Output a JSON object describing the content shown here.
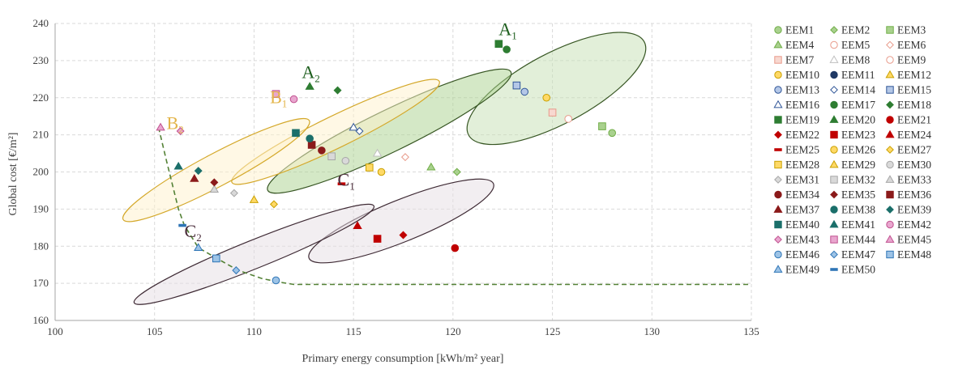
{
  "chart_data": {
    "type": "scatter",
    "title": "",
    "xlabel": "Primary energy consumption [kWh/m² year]",
    "ylabel": "Global cost [€/m²]",
    "xlim": [
      100,
      135
    ],
    "ylim": [
      160,
      240
    ],
    "xticks": [
      100,
      105,
      110,
      115,
      120,
      125,
      130,
      135
    ],
    "yticks": [
      160,
      170,
      180,
      190,
      200,
      210,
      220,
      230,
      240
    ],
    "grid": "dashed",
    "legend_position": "right",
    "series": [
      {
        "name": "EEM1",
        "marker": "circle",
        "color": "#70ad47",
        "fill": "#a9d18e",
        "x": 128.0,
        "y": 210.5
      },
      {
        "name": "EEM2",
        "marker": "diamond",
        "color": "#70ad47",
        "fill": "#a9d18e",
        "x": 120.2,
        "y": 200.0
      },
      {
        "name": "EEM3",
        "marker": "square",
        "color": "#70ad47",
        "fill": "#a9d18e",
        "x": 127.5,
        "y": 212.3
      },
      {
        "name": "EEM4",
        "marker": "triangle",
        "color": "#70ad47",
        "fill": "#a9d18e",
        "x": 118.9,
        "y": 201.3
      },
      {
        "name": "EEM5",
        "marker": "circle",
        "color": "#e89a8a",
        "fill": "#ffffff",
        "x": null,
        "y": null
      },
      {
        "name": "EEM6",
        "marker": "diamond",
        "color": "#e89a8a",
        "fill": "#ffffff",
        "x": 117.6,
        "y": 204.0
      },
      {
        "name": "EEM7",
        "marker": "square",
        "color": "#e89a8a",
        "fill": "#f8d8d0",
        "x": 125.0,
        "y": 216.0
      },
      {
        "name": "EEM8",
        "marker": "triangle",
        "color": "#bfbfbf",
        "fill": "#ffffff",
        "x": 116.2,
        "y": 205.0
      },
      {
        "name": "EEM9",
        "marker": "circle",
        "color": "#e89a8a",
        "fill": "#ffffff",
        "x": 125.8,
        "y": 214.3
      },
      {
        "name": "EEM10",
        "marker": "circle",
        "color": "#c9a000",
        "fill": "#ffd966",
        "x": 124.7,
        "y": 220.0
      },
      {
        "name": "EEM11",
        "marker": "circle",
        "color": "#1f3864",
        "fill": "#1f3864",
        "x": null,
        "y": null
      },
      {
        "name": "EEM12",
        "marker": "triangle",
        "color": "#c9a000",
        "fill": "#ffd966",
        "x": null,
        "y": null
      },
      {
        "name": "EEM13",
        "marker": "circle",
        "color": "#2f5597",
        "fill": "#b4c7e7",
        "x": 123.6,
        "y": 221.6
      },
      {
        "name": "EEM14",
        "marker": "diamond",
        "color": "#2f5597",
        "fill": "#ffffff",
        "x": 115.3,
        "y": 211.0
      },
      {
        "name": "EEM15",
        "marker": "square",
        "color": "#2f5597",
        "fill": "#b4c7e7",
        "x": 123.2,
        "y": 223.3
      },
      {
        "name": "EEM16",
        "marker": "triangle",
        "color": "#2f5597",
        "fill": "#ffffff",
        "x": 115.0,
        "y": 212.0
      },
      {
        "name": "EEM17",
        "marker": "circle",
        "color": "#2e7d32",
        "fill": "#2e7d32",
        "x": 122.7,
        "y": 233.0
      },
      {
        "name": "EEM18",
        "marker": "diamond",
        "color": "#2e7d32",
        "fill": "#2e7d32",
        "x": 114.2,
        "y": 222.0
      },
      {
        "name": "EEM19",
        "marker": "square",
        "color": "#2e7d32",
        "fill": "#2e7d32",
        "x": 122.3,
        "y": 234.5
      },
      {
        "name": "EEM20",
        "marker": "triangle",
        "color": "#2e7d32",
        "fill": "#2e7d32",
        "x": 112.8,
        "y": 223.0
      },
      {
        "name": "EEM21",
        "marker": "circle",
        "color": "#c00000",
        "fill": "#c00000",
        "x": 120.1,
        "y": 179.5
      },
      {
        "name": "EEM22",
        "marker": "diamond",
        "color": "#c00000",
        "fill": "#c00000",
        "x": 117.5,
        "y": 183.0
      },
      {
        "name": "EEM23",
        "marker": "square",
        "color": "#c00000",
        "fill": "#c00000",
        "x": 116.2,
        "y": 182.0
      },
      {
        "name": "EEM24",
        "marker": "triangle",
        "color": "#c00000",
        "fill": "#c00000",
        "x": 115.2,
        "y": 185.5
      },
      {
        "name": "EEM25",
        "marker": "dash",
        "color": "#c00000",
        "fill": "#c00000",
        "x": 114.4,
        "y": 196.8
      },
      {
        "name": "EEM26",
        "marker": "circle",
        "color": "#c9a000",
        "fill": "#ffd966",
        "x": 116.4,
        "y": 200.0
      },
      {
        "name": "EEM27",
        "marker": "diamond",
        "color": "#c9a000",
        "fill": "#ffd966",
        "x": 111.0,
        "y": 191.3
      },
      {
        "name": "EEM28",
        "marker": "square",
        "color": "#c9a000",
        "fill": "#ffd966",
        "x": 115.8,
        "y": 201.2
      },
      {
        "name": "EEM29",
        "marker": "triangle",
        "color": "#c9a000",
        "fill": "#ffd966",
        "x": 110.0,
        "y": 192.5
      },
      {
        "name": "EEM30",
        "marker": "circle",
        "color": "#a6a6a6",
        "fill": "#d9d9d9",
        "x": 114.6,
        "y": 203.0
      },
      {
        "name": "EEM31",
        "marker": "diamond",
        "color": "#a6a6a6",
        "fill": "#d9d9d9",
        "x": 109.0,
        "y": 194.3
      },
      {
        "name": "EEM32",
        "marker": "square",
        "color": "#a6a6a6",
        "fill": "#d9d9d9",
        "x": 113.9,
        "y": 204.2
      },
      {
        "name": "EEM33",
        "marker": "triangle",
        "color": "#a6a6a6",
        "fill": "#d9d9d9",
        "x": 108.0,
        "y": 195.3
      },
      {
        "name": "EEM34",
        "marker": "circle",
        "color": "#8b1a1a",
        "fill": "#8b1a1a",
        "x": 113.4,
        "y": 205.8
      },
      {
        "name": "EEM35",
        "marker": "diamond",
        "color": "#8b1a1a",
        "fill": "#8b1a1a",
        "x": 108.0,
        "y": 197.2
      },
      {
        "name": "EEM36",
        "marker": "square",
        "color": "#8b1a1a",
        "fill": "#8b1a1a",
        "x": 112.9,
        "y": 207.3
      },
      {
        "name": "EEM37",
        "marker": "triangle",
        "color": "#8b1a1a",
        "fill": "#8b1a1a",
        "x": 107.0,
        "y": 198.2
      },
      {
        "name": "EEM38",
        "marker": "circle",
        "color": "#1b6f6a",
        "fill": "#1b6f6a",
        "x": 112.8,
        "y": 209.0
      },
      {
        "name": "EEM39",
        "marker": "diamond",
        "color": "#1b6f6a",
        "fill": "#1b6f6a",
        "x": 107.2,
        "y": 200.3
      },
      {
        "name": "EEM40",
        "marker": "square",
        "color": "#1b6f6a",
        "fill": "#1b6f6a",
        "x": 112.1,
        "y": 210.5
      },
      {
        "name": "EEM41",
        "marker": "triangle",
        "color": "#1b6f6a",
        "fill": "#1b6f6a",
        "x": 106.2,
        "y": 201.5
      },
      {
        "name": "EEM42",
        "marker": "circle",
        "color": "#c0508e",
        "fill": "#e9a6cf",
        "x": 112.0,
        "y": 219.6
      },
      {
        "name": "EEM43",
        "marker": "diamond",
        "color": "#c0508e",
        "fill": "#e9a6cf",
        "x": 106.3,
        "y": 211.0
      },
      {
        "name": "EEM44",
        "marker": "square",
        "color": "#c0508e",
        "fill": "#e9a6cf",
        "x": 111.1,
        "y": 221.0
      },
      {
        "name": "EEM45",
        "marker": "triangle",
        "color": "#c0508e",
        "fill": "#e9a6cf",
        "x": 105.3,
        "y": 212.0
      },
      {
        "name": "EEM46",
        "marker": "circle",
        "color": "#2e75b6",
        "fill": "#9dc3e6",
        "x": 111.1,
        "y": 170.8
      },
      {
        "name": "EEM47",
        "marker": "diamond",
        "color": "#2e75b6",
        "fill": "#9dc3e6",
        "x": 109.1,
        "y": 173.5
      },
      {
        "name": "EEM48",
        "marker": "square",
        "color": "#2e75b6",
        "fill": "#9dc3e6",
        "x": 108.1,
        "y": 176.7
      },
      {
        "name": "EEM49",
        "marker": "triangle",
        "color": "#2e75b6",
        "fill": "#9dc3e6",
        "x": 107.2,
        "y": 179.6
      },
      {
        "name": "EEM50",
        "marker": "dash",
        "color": "#2e75b6",
        "fill": "#2e75b6",
        "x": 106.4,
        "y": 185.6
      }
    ],
    "pareto_front": {
      "color": "#538135",
      "x": [
        105.2,
        105.6,
        106.2,
        106.5,
        107.2,
        108.2,
        109.2,
        110.4,
        111.3,
        112.0,
        135
      ],
      "y": [
        212.0,
        203.0,
        190.0,
        185.6,
        179.6,
        176.5,
        173.5,
        171.3,
        170.3,
        169.7,
        169.7
      ]
    },
    "clusters": [
      {
        "label": "A",
        "sub": "1",
        "color": "#1d5e1d",
        "fill": "#c6e0b4",
        "stroke": "#375623",
        "cx": 125.2,
        "cy": 222.5,
        "rx": 5.0,
        "ry": 9.5,
        "angle": -28,
        "lx": 122.3,
        "ly": 236.8
      },
      {
        "label": "A",
        "sub": "2",
        "color": "#1d5e1d",
        "fill": "#a9d18e",
        "stroke": "#375623",
        "cx": 116.8,
        "cy": 211.0,
        "rx": 6.8,
        "ry": 5.6,
        "angle": -26,
        "lx": 112.4,
        "ly": 225.3
      },
      {
        "label": "B",
        "sub": "1",
        "color": "#e3b448",
        "fill": "#fff2cc",
        "stroke": "#d4a82a",
        "cx": 114.1,
        "cy": 210.8,
        "rx": 5.8,
        "ry": 4.3,
        "angle": -26,
        "lx": 110.8,
        "ly": 218.5
      },
      {
        "label": "B",
        "sub": "2",
        "color": "#e3b448",
        "fill": "#fff2cc",
        "stroke": "#d4a82a",
        "cx": 108.1,
        "cy": 200.5,
        "rx": 5.3,
        "ry": 4.4,
        "angle": -28,
        "lx": 105.6,
        "ly": 211.5
      },
      {
        "label": "C",
        "sub": "1",
        "color": "#4a2c3a",
        "fill": "#e6dde3",
        "stroke": "#3e2a34",
        "cx": 117.4,
        "cy": 186.8,
        "rx": 5.0,
        "ry": 5.6,
        "angle": -22,
        "lx": 114.2,
        "ly": 196.3
      },
      {
        "label": "C",
        "sub": "2",
        "color": "#4a2c3a",
        "fill": "#e6dde3",
        "stroke": "#3e2a34",
        "cx": 110.0,
        "cy": 177.8,
        "rx": 6.5,
        "ry": 3.8,
        "angle": -22,
        "lx": 106.5,
        "ly": 182.5
      }
    ]
  }
}
